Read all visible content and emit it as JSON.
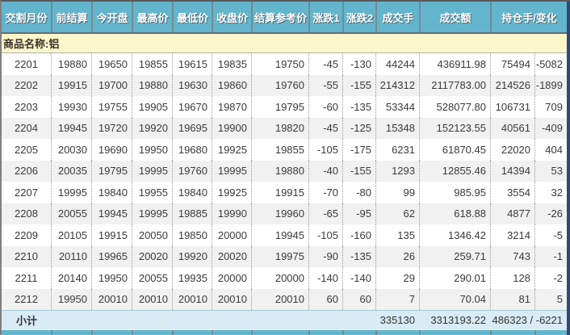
{
  "table": {
    "product_label": "商品名称:铝",
    "headers": [
      {
        "key": "delivery-month",
        "label": "交割月份",
        "span": 1
      },
      {
        "key": "prev-settlement",
        "label": "前结算",
        "span": 1
      },
      {
        "key": "open",
        "label": "今开盘",
        "span": 1
      },
      {
        "key": "high",
        "label": "最高价",
        "span": 1
      },
      {
        "key": "low",
        "label": "最低价",
        "span": 1
      },
      {
        "key": "close",
        "label": "收盘价",
        "span": 1
      },
      {
        "key": "settlement-reference",
        "label": "结算参考价",
        "span": 1
      },
      {
        "key": "change1",
        "label": "涨跌1",
        "span": 1
      },
      {
        "key": "change2",
        "label": "涨跌2",
        "span": 1
      },
      {
        "key": "volume",
        "label": "成交手",
        "span": 1
      },
      {
        "key": "turnover",
        "label": "成交额",
        "span": 1
      },
      {
        "key": "open-interest-change",
        "label": "持仓手/变化",
        "span": 2
      }
    ],
    "rows": [
      [
        "2201",
        "19880",
        "19650",
        "19855",
        "19615",
        "19835",
        "19750",
        "-45",
        "-130",
        "44244",
        "436911.98",
        "75494",
        "-5082"
      ],
      [
        "2202",
        "19915",
        "19700",
        "19880",
        "19630",
        "19860",
        "19760",
        "-55",
        "-155",
        "214312",
        "2117783.00",
        "214526",
        "-1899"
      ],
      [
        "2203",
        "19930",
        "19755",
        "19905",
        "19670",
        "19870",
        "19795",
        "-60",
        "-135",
        "53344",
        "528077.80",
        "106731",
        "709"
      ],
      [
        "2204",
        "19945",
        "19720",
        "19920",
        "19695",
        "19900",
        "19820",
        "-45",
        "-125",
        "15348",
        "152123.55",
        "40561",
        "-409"
      ],
      [
        "2205",
        "20030",
        "19690",
        "19950",
        "19680",
        "19925",
        "19855",
        "-105",
        "-175",
        "6231",
        "61870.45",
        "22020",
        "404"
      ],
      [
        "2206",
        "20035",
        "19795",
        "19995",
        "19760",
        "19995",
        "19880",
        "-40",
        "-155",
        "1293",
        "12855.46",
        "14394",
        "53"
      ],
      [
        "2207",
        "19995",
        "19840",
        "19955",
        "19840",
        "19925",
        "19915",
        "-70",
        "-80",
        "99",
        "985.95",
        "3554",
        "32"
      ],
      [
        "2208",
        "20055",
        "19945",
        "19995",
        "19885",
        "19990",
        "19960",
        "-65",
        "-95",
        "62",
        "618.88",
        "4877",
        "-26"
      ],
      [
        "2209",
        "20105",
        "19915",
        "20050",
        "19850",
        "20000",
        "19945",
        "-105",
        "-160",
        "135",
        "1346.42",
        "3214",
        "-5"
      ],
      [
        "2210",
        "20110",
        "19965",
        "20020",
        "19920",
        "20020",
        "19975",
        "-90",
        "-135",
        "26",
        "259.71",
        "743",
        "-1"
      ],
      [
        "2211",
        "20140",
        "19950",
        "20055",
        "19935",
        "20000",
        "20000",
        "-140",
        "-140",
        "29",
        "290.01",
        "128",
        "-2"
      ],
      [
        "2212",
        "19950",
        "20010",
        "20010",
        "20010",
        "20010",
        "20010",
        "60",
        "60",
        "7",
        "70.04",
        "81",
        "5"
      ]
    ],
    "subtotal": {
      "label": "小计",
      "volume": "335130",
      "turnover": "3313193.22",
      "oi_change": "486323 / -6221"
    }
  },
  "colors": {
    "header_bg": "#63b5cd",
    "product_row_bg": "#fcf6cb",
    "alt_row_bg": "#f1f1f1",
    "subtotal_bg": "#d9ebf5",
    "scrollbar": "#314972"
  }
}
